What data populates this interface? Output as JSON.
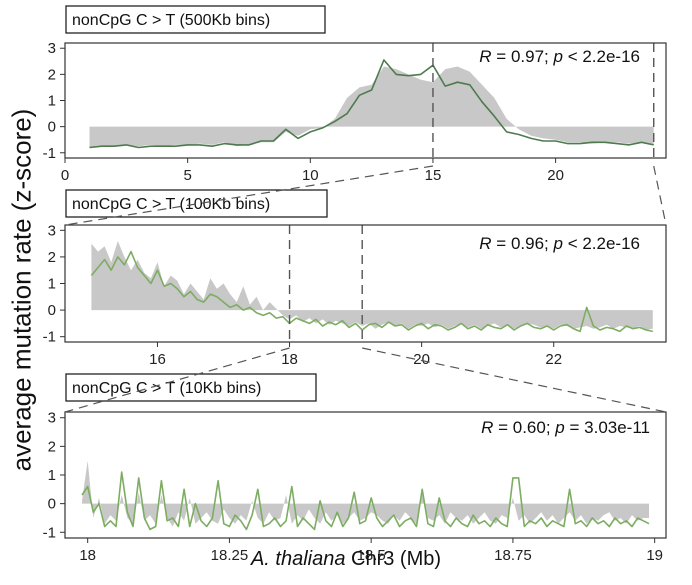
{
  "ylabel": "average mutation rate  (z-score)",
  "xlabel": {
    "species": "A. thaliana",
    "rest": "  Chr3 (Mb)"
  },
  "colors": {
    "area": "#c8c8c8",
    "line_dark": "#4e7a4e",
    "line_light": "#7dad62",
    "frame": "#333333",
    "dash": "#555555"
  },
  "chart_data": [
    {
      "type": "area",
      "title": "nonCpG C > T (500Kb bins)",
      "stat": {
        "R_label": "R",
        "R_value": " = 0.97; ",
        "p_label": "p",
        "p_value": " < 2.2e-16"
      },
      "xlim": [
        0,
        24.5
      ],
      "ylim": [
        -1.2,
        3.2
      ],
      "xticks": [
        0,
        5,
        10,
        15,
        20
      ],
      "yticks": [
        -1,
        0,
        1,
        2,
        3
      ],
      "dashed_x": [
        15,
        24
      ],
      "x": [
        1.0,
        1.5,
        2.0,
        2.5,
        3.0,
        3.5,
        4.0,
        4.5,
        5.0,
        5.5,
        6.0,
        6.5,
        7.0,
        7.5,
        8.0,
        8.5,
        9.0,
        9.5,
        10.0,
        10.5,
        11.0,
        11.5,
        12.0,
        12.5,
        13.0,
        13.5,
        14.0,
        14.5,
        15.0,
        15.5,
        16.0,
        16.5,
        17.0,
        17.5,
        18.0,
        18.5,
        19.0,
        19.5,
        20.0,
        20.5,
        21.0,
        21.5,
        22.0,
        22.5,
        23.0,
        23.5,
        24.0
      ],
      "series": [
        {
          "values": [
            -0.8,
            -0.75,
            -0.75,
            -0.7,
            -0.75,
            -0.7,
            -0.75,
            -0.7,
            -0.7,
            -0.65,
            -0.7,
            -0.6,
            -0.75,
            -0.7,
            -0.6,
            -0.6,
            -0.2,
            -0.35,
            -0.1,
            -0.05,
            0.3,
            1.1,
            1.5,
            1.6,
            2.3,
            2.2,
            2.0,
            1.8,
            1.7,
            2.2,
            2.3,
            2.1,
            1.6,
            1.1,
            0.3,
            -0.1,
            -0.35,
            -0.45,
            -0.5,
            -0.6,
            -0.6,
            -0.65,
            -0.6,
            -0.6,
            -0.65,
            -0.6,
            -0.7
          ]
        },
        {
          "values": [
            -0.8,
            -0.75,
            -0.75,
            -0.7,
            -0.8,
            -0.75,
            -0.75,
            -0.75,
            -0.7,
            -0.7,
            -0.75,
            -0.65,
            -0.7,
            -0.7,
            -0.55,
            -0.55,
            -0.1,
            -0.45,
            -0.2,
            -0.05,
            0.2,
            0.5,
            1.2,
            1.4,
            2.55,
            2.0,
            1.95,
            2.0,
            2.35,
            1.55,
            1.7,
            1.6,
            0.95,
            0.4,
            -0.2,
            -0.3,
            -0.45,
            -0.55,
            -0.55,
            -0.65,
            -0.65,
            -0.6,
            -0.6,
            -0.65,
            -0.7,
            -0.6,
            -0.7
          ]
        }
      ]
    },
    {
      "type": "area",
      "title": "nonCpG C > T (100Kb bins)",
      "stat": {
        "R_label": "R",
        "R_value": " = 0.96; ",
        "p_label": "p",
        "p_value": " < 2.2e-16"
      },
      "xlim": [
        14.6,
        23.7
      ],
      "ylim": [
        -1.2,
        3.2
      ],
      "xticks": [
        16,
        18,
        20,
        22
      ],
      "yticks": [
        -1,
        0,
        1,
        2,
        3
      ],
      "dashed_x": [
        18,
        19.1
      ],
      "x": [
        15.0,
        15.1,
        15.2,
        15.3,
        15.4,
        15.5,
        15.6,
        15.7,
        15.8,
        15.9,
        16.0,
        16.1,
        16.2,
        16.3,
        16.4,
        16.5,
        16.6,
        16.7,
        16.8,
        16.9,
        17.0,
        17.1,
        17.2,
        17.3,
        17.4,
        17.5,
        17.6,
        17.7,
        17.8,
        17.9,
        18.0,
        18.1,
        18.2,
        18.3,
        18.4,
        18.5,
        18.6,
        18.7,
        18.8,
        18.9,
        19.0,
        19.1,
        19.2,
        19.3,
        19.4,
        19.5,
        19.6,
        19.7,
        19.8,
        19.9,
        20.0,
        20.1,
        20.2,
        20.3,
        20.4,
        20.5,
        20.6,
        20.7,
        20.8,
        20.9,
        21.0,
        21.1,
        21.2,
        21.3,
        21.4,
        21.5,
        21.6,
        21.7,
        21.8,
        21.9,
        22.0,
        22.1,
        22.2,
        22.3,
        22.4,
        22.5,
        22.6,
        22.7,
        22.8,
        22.9,
        23.0,
        23.1,
        23.2,
        23.3,
        23.4,
        23.5
      ],
      "series": [
        {
          "values": [
            2.5,
            2.2,
            2.4,
            1.8,
            2.6,
            2.0,
            1.5,
            1.9,
            1.4,
            1.2,
            1.8,
            0.9,
            1.3,
            1.1,
            0.6,
            1.0,
            0.7,
            0.4,
            1.2,
            0.8,
            1.0,
            0.6,
            0.3,
            0.9,
            0.2,
            0.5,
            0.0,
            0.3,
            0.05,
            -0.2,
            -0.35,
            -0.2,
            -0.45,
            -0.3,
            -0.5,
            -0.35,
            -0.55,
            -0.4,
            -0.5,
            -0.6,
            -0.45,
            -0.6,
            -0.5,
            -0.7,
            -0.55,
            -0.45,
            -0.6,
            -0.5,
            -0.7,
            -0.55,
            -0.6,
            -0.5,
            -0.65,
            -0.55,
            -0.7,
            -0.6,
            -0.5,
            -0.65,
            -0.55,
            -0.7,
            -0.6,
            -0.5,
            -0.65,
            -0.55,
            -0.7,
            -0.6,
            -0.5,
            -0.55,
            -0.65,
            -0.6,
            -0.7,
            -0.55,
            -0.6,
            -0.7,
            -0.65,
            -0.6,
            -0.7,
            -0.65,
            -0.55,
            -0.7,
            -0.6,
            -0.65,
            -0.7,
            -0.6,
            -0.75,
            -0.7
          ]
        },
        {
          "values": [
            1.3,
            1.6,
            1.9,
            1.5,
            2.0,
            1.7,
            2.2,
            1.6,
            1.3,
            1.0,
            1.5,
            0.9,
            1.0,
            0.8,
            0.5,
            0.7,
            0.4,
            0.3,
            0.6,
            0.5,
            0.3,
            0.1,
            0.2,
            0.0,
            0.1,
            -0.1,
            -0.2,
            -0.1,
            -0.3,
            -0.25,
            -0.5,
            -0.3,
            -0.4,
            -0.5,
            -0.35,
            -0.6,
            -0.45,
            -0.55,
            -0.4,
            -0.65,
            -0.5,
            -0.75,
            -0.55,
            -0.5,
            -0.65,
            -0.45,
            -0.6,
            -0.55,
            -0.75,
            -0.6,
            -0.5,
            -0.7,
            -0.55,
            -0.6,
            -0.75,
            -0.65,
            -0.5,
            -0.7,
            -0.6,
            -0.75,
            -0.55,
            -0.65,
            -0.7,
            -0.55,
            -0.75,
            -0.6,
            -0.5,
            -0.65,
            -0.7,
            -0.6,
            -0.75,
            -0.6,
            -0.55,
            -0.7,
            -0.8,
            0.1,
            -0.6,
            -0.75,
            -0.65,
            -0.7,
            -0.8,
            -0.6,
            -0.7,
            -0.65,
            -0.75,
            -0.8
          ]
        }
      ]
    },
    {
      "type": "area",
      "title": "nonCpG C > T (10Kb bins)",
      "stat": {
        "R_label": "R",
        "R_value": " = 0.60; ",
        "p_label": "p",
        "p_value": " = 3.03e-11"
      },
      "xlim": [
        17.96,
        19.02
      ],
      "ylim": [
        -1.2,
        3.2
      ],
      "xticks": [
        18,
        18.25,
        18.5,
        18.75,
        19
      ],
      "xtick_labels": [
        "18",
        "18.25",
        "18.5",
        "18.75",
        "19"
      ],
      "yticks": [
        -1,
        0,
        1,
        2,
        3
      ],
      "dashed_x": [],
      "x": [
        17.99,
        18.0,
        18.01,
        18.02,
        18.03,
        18.04,
        18.05,
        18.06,
        18.07,
        18.08,
        18.09,
        18.1,
        18.11,
        18.12,
        18.13,
        18.14,
        18.15,
        18.16,
        18.17,
        18.18,
        18.19,
        18.2,
        18.21,
        18.22,
        18.23,
        18.24,
        18.25,
        18.26,
        18.27,
        18.28,
        18.29,
        18.3,
        18.31,
        18.32,
        18.33,
        18.34,
        18.35,
        18.36,
        18.37,
        18.38,
        18.39,
        18.4,
        18.41,
        18.42,
        18.43,
        18.44,
        18.45,
        18.46,
        18.47,
        18.48,
        18.49,
        18.5,
        18.51,
        18.52,
        18.53,
        18.54,
        18.55,
        18.56,
        18.57,
        18.58,
        18.59,
        18.6,
        18.61,
        18.62,
        18.63,
        18.64,
        18.65,
        18.66,
        18.67,
        18.68,
        18.69,
        18.7,
        18.71,
        18.72,
        18.73,
        18.74,
        18.75,
        18.76,
        18.77,
        18.78,
        18.79,
        18.8,
        18.81,
        18.82,
        18.83,
        18.84,
        18.85,
        18.86,
        18.87,
        18.88,
        18.89,
        18.9,
        18.91,
        18.92,
        18.93,
        18.94,
        18.95,
        18.96,
        18.97,
        18.98,
        18.99
      ],
      "series": [
        {
          "values": [
            0.1,
            1.5,
            -0.5,
            0.2,
            -0.7,
            -0.4,
            -0.6,
            0.3,
            -0.5,
            -0.7,
            0.4,
            -0.6,
            -0.4,
            -0.7,
            0.3,
            -0.5,
            -0.8,
            -0.3,
            -0.6,
            0.2,
            -0.7,
            -0.5,
            -0.3,
            -0.6,
            -0.7,
            -0.2,
            -0.5,
            -0.7,
            -0.4,
            -0.6,
            0.1,
            -0.5,
            -0.7,
            -0.3,
            -0.6,
            -0.5,
            0.3,
            -0.7,
            -0.4,
            -0.6,
            -0.2,
            -0.5,
            -0.7,
            -0.3,
            -0.6,
            -0.4,
            -0.7,
            -0.5,
            -0.3,
            -0.6,
            -0.5,
            -0.3,
            -0.4,
            -0.6,
            -0.7,
            -0.4,
            -0.6,
            -0.3,
            -0.5,
            -0.7,
            0.4,
            -0.5,
            -0.6,
            -0.4,
            -0.7,
            -0.3,
            -0.5,
            -0.6,
            -0.4,
            -0.7,
            -0.5,
            -0.3,
            -0.6,
            -0.7,
            -0.4,
            -0.5,
            0.2,
            -0.6,
            -0.4,
            -0.7,
            -0.5,
            -0.3,
            -0.6,
            -0.4,
            -0.7,
            -0.5,
            -0.3,
            -0.6,
            -0.4,
            -0.7,
            -0.5,
            -0.6,
            -0.4,
            -0.3,
            -0.6,
            -0.5,
            -0.7,
            -0.4,
            -0.6,
            -0.5,
            -0.5
          ]
        },
        {
          "values": [
            0.3,
            0.6,
            -0.3,
            0.0,
            -0.8,
            -0.6,
            -0.8,
            1.1,
            -0.3,
            -0.8,
            0.9,
            -0.5,
            -0.9,
            -0.8,
            0.8,
            -0.6,
            -0.5,
            -0.8,
            0.5,
            -0.8,
            0.0,
            -0.6,
            -0.8,
            -0.5,
            0.8,
            -0.7,
            -0.8,
            -0.4,
            -0.6,
            -0.9,
            -0.4,
            0.5,
            -0.8,
            -0.7,
            -0.5,
            -0.8,
            -0.6,
            0.6,
            -0.8,
            -0.5,
            -0.7,
            -0.9,
            0.1,
            -0.6,
            -0.8,
            -0.3,
            -0.8,
            -0.5,
            0.4,
            -0.7,
            -0.6,
            0.2,
            -0.5,
            -0.8,
            -0.6,
            -0.4,
            -0.8,
            -0.6,
            -0.5,
            -0.8,
            0.5,
            -0.7,
            -0.8,
            0.2,
            -0.6,
            -0.8,
            -0.5,
            -0.7,
            -0.8,
            -0.4,
            -0.7,
            -0.6,
            -0.8,
            -0.5,
            -0.7,
            -0.8,
            0.9,
            0.9,
            -0.8,
            -0.6,
            -0.7,
            -0.5,
            -0.8,
            -0.6,
            -0.7,
            -0.8,
            0.5,
            -0.7,
            -0.6,
            -0.8,
            -0.5,
            -0.7,
            -0.6,
            -0.8,
            -0.5,
            -0.7,
            -0.6,
            -0.8,
            -0.5,
            -0.6,
            -0.7
          ]
        }
      ]
    }
  ]
}
